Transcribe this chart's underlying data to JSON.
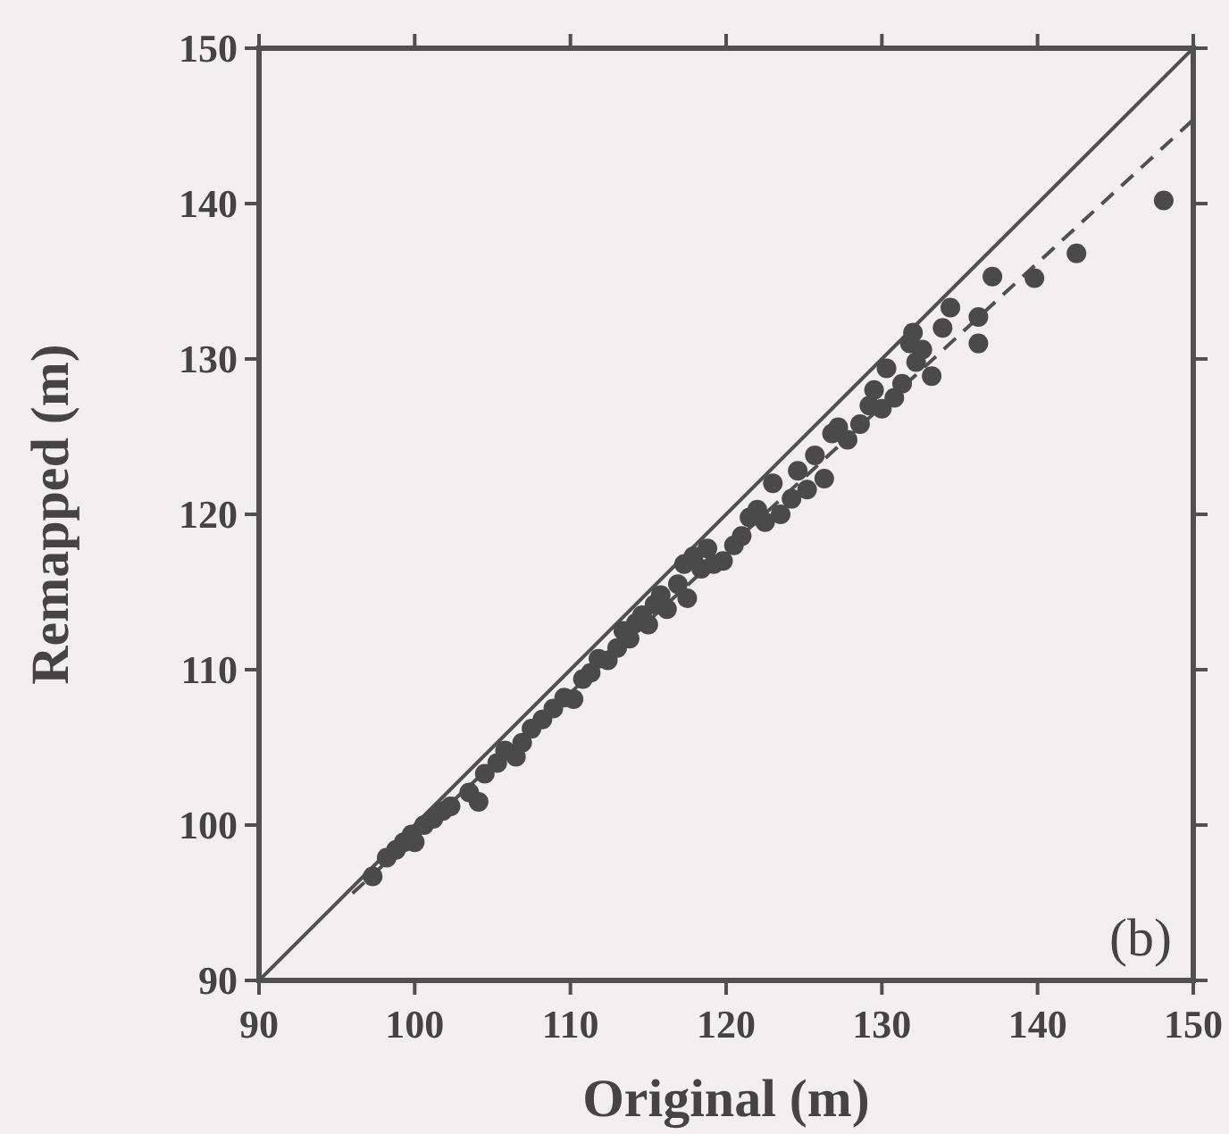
{
  "chart_data": {
    "type": "scatter",
    "xlabel": "Original (m)",
    "ylabel": "Remapped (m)",
    "xlim": [
      90,
      150
    ],
    "ylim": [
      90,
      150
    ],
    "xticks": [
      90,
      100,
      110,
      120,
      130,
      140,
      150
    ],
    "yticks": [
      90,
      100,
      110,
      120,
      130,
      140,
      150
    ],
    "grid": false,
    "annotations": [
      "(b)"
    ],
    "series": [
      {
        "type": "line",
        "color": "#505050",
        "line_style": "solid",
        "marker": "none",
        "x": [
          90,
          150
        ],
        "values": [
          90,
          150
        ]
      },
      {
        "type": "line",
        "color": "#505050",
        "line_style": "dashed",
        "marker": "none",
        "x": [
          96,
          150
        ],
        "values": [
          95.6,
          145.4
        ]
      },
      {
        "color": "#4a4a4a",
        "marker": "circle",
        "x": [
          97.3,
          98.2,
          98.8,
          99.3,
          99.8,
          100.0,
          100.6,
          101.2,
          101.8,
          102.3,
          103.5,
          104.1,
          104.5,
          105.3,
          105.8,
          106.5,
          106.9,
          107.5,
          108.2,
          108.9,
          109.6,
          110.2,
          110.8,
          111.3,
          111.8,
          112.4,
          113.0,
          113.4,
          113.8,
          114.2,
          114.6,
          115.0,
          115.4,
          115.8,
          116.2,
          116.9,
          117.3,
          117.5,
          117.9,
          118.4,
          118.8,
          119.2,
          119.8,
          120.5,
          121.0,
          121.5,
          122.0,
          122.5,
          123.0,
          123.5,
          124.2,
          124.6,
          125.2,
          125.7,
          126.3,
          126.8,
          127.2,
          127.8,
          128.6,
          129.2,
          129.5,
          130.0,
          130.3,
          130.8,
          131.3,
          131.8,
          132.2,
          132.6,
          133.2,
          132.0,
          133.9,
          134.4,
          136.2,
          136.2,
          137.1,
          139.8,
          142.5,
          148.1
        ],
        "values": [
          96.7,
          97.9,
          98.4,
          98.9,
          99.4,
          98.9,
          100.0,
          100.4,
          100.9,
          101.2,
          102.1,
          101.5,
          103.3,
          104.0,
          104.8,
          104.4,
          105.3,
          106.2,
          106.8,
          107.5,
          108.2,
          108.1,
          109.4,
          109.8,
          110.7,
          110.6,
          111.4,
          112.5,
          112.0,
          113.0,
          113.5,
          112.9,
          114.2,
          114.8,
          113.9,
          115.5,
          116.8,
          114.6,
          117.3,
          116.5,
          117.8,
          116.8,
          117.0,
          118.0,
          118.6,
          119.8,
          120.3,
          119.5,
          122.0,
          120.0,
          121.0,
          122.8,
          121.6,
          123.8,
          122.3,
          125.2,
          125.6,
          124.8,
          125.8,
          127.0,
          128.0,
          126.8,
          129.4,
          127.5,
          128.4,
          131.0,
          129.8,
          130.6,
          128.9,
          131.7,
          132.0,
          133.3,
          132.7,
          131.0,
          135.3,
          135.2,
          136.8,
          140.2
        ]
      }
    ]
  }
}
